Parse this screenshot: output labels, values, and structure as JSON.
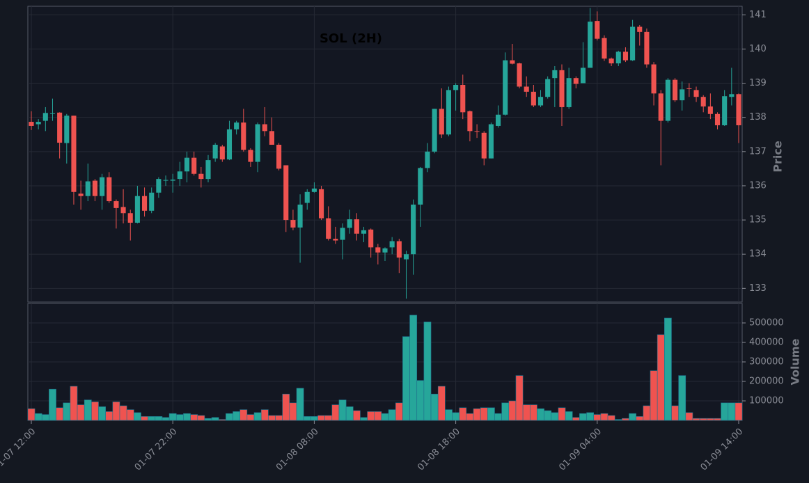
{
  "chart_data": {
    "type": "candlestick",
    "title": "SOL (2H)",
    "ylabel": "Price",
    "volume_label": "Volume",
    "up_color": "#26a69a",
    "down_color": "#ef5350",
    "grid": true,
    "categories": [
      "01-07 12:00",
      null,
      null,
      null,
      null,
      null,
      null,
      null,
      null,
      null,
      null,
      null,
      null,
      null,
      null,
      null,
      null,
      null,
      null,
      null,
      "01-07 22:00",
      null,
      null,
      null,
      null,
      null,
      null,
      null,
      null,
      null,
      null,
      null,
      null,
      null,
      null,
      null,
      null,
      null,
      null,
      null,
      "01-08 08:00",
      null,
      null,
      null,
      null,
      null,
      null,
      null,
      null,
      null,
      null,
      null,
      null,
      null,
      null,
      null,
      null,
      null,
      null,
      null,
      "01-08 18:00",
      null,
      null,
      null,
      null,
      null,
      null,
      null,
      null,
      null,
      null,
      null,
      null,
      null,
      null,
      null,
      null,
      null,
      null,
      null,
      "01-09 04:00",
      null,
      null,
      null,
      null,
      null,
      null,
      null,
      null,
      null,
      null,
      null,
      null,
      null,
      null,
      null,
      null,
      null,
      null,
      null,
      "01-09 14:00"
    ],
    "open": [
      137.87,
      137.8,
      137.9,
      138.1,
      138.14,
      137.25,
      138.05,
      135.77,
      135.7,
      136.15,
      135.7,
      136.25,
      135.55,
      135.38,
      135.2,
      134.92,
      135.7,
      135.27,
      135.8,
      136.15,
      136.15,
      136.2,
      136.42,
      136.82,
      136.35,
      136.2,
      136.8,
      137.15,
      136.77,
      137.65,
      137.85,
      137.05,
      136.7,
      137.8,
      137.6,
      137.2,
      136.6,
      135.0,
      134.78,
      135.5,
      135.82,
      135.9,
      135.05,
      134.45,
      134.42,
      134.77,
      135.02,
      134.6,
      134.72,
      134.2,
      134.05,
      134.2,
      134.38,
      133.85,
      134.0,
      135.45,
      136.52,
      137.0,
      138.25,
      137.5,
      138.8,
      138.95,
      138.18,
      137.6,
      137.55,
      136.8,
      137.75,
      138.08,
      139.67,
      139.58,
      138.9,
      138.75,
      138.35,
      138.6,
      139.15,
      139.38,
      138.3,
      139.15,
      139.0,
      139.45,
      140.82,
      140.32,
      139.72,
      139.58,
      139.92,
      139.67,
      140.65,
      140.5,
      139.55,
      138.7,
      137.9,
      139.1,
      138.5,
      138.85,
      138.8,
      138.6,
      138.32,
      138.1,
      137.77,
      138.6,
      138.68
    ],
    "high": [
      138.18,
      137.95,
      138.3,
      138.55,
      138.15,
      138.1,
      138.05,
      136.15,
      136.65,
      136.2,
      136.35,
      136.4,
      135.6,
      135.9,
      135.3,
      136.0,
      135.95,
      135.95,
      136.25,
      136.3,
      136.35,
      136.7,
      137.0,
      137.0,
      136.55,
      136.9,
      137.25,
      137.2,
      137.9,
      137.9,
      138.25,
      137.1,
      137.85,
      138.3,
      138.0,
      137.25,
      136.6,
      135.3,
      135.75,
      135.9,
      136.1,
      136.0,
      135.4,
      134.8,
      134.9,
      135.3,
      135.2,
      134.8,
      134.75,
      134.3,
      134.2,
      134.5,
      134.45,
      134.1,
      135.6,
      136.55,
      137.25,
      138.25,
      138.85,
      138.9,
      139.0,
      139.25,
      138.2,
      137.8,
      137.6,
      137.85,
      138.35,
      139.9,
      140.15,
      139.6,
      139.2,
      138.95,
      138.8,
      139.2,
      139.5,
      139.55,
      139.45,
      139.2,
      140.2,
      141.2,
      141.1,
      140.4,
      139.75,
      139.95,
      140.05,
      140.85,
      140.7,
      140.6,
      139.62,
      138.8,
      139.15,
      139.15,
      139.05,
      139.0,
      138.9,
      138.65,
      138.7,
      138.15,
      138.8,
      139.45,
      138.7
    ],
    "low": [
      137.63,
      137.65,
      137.6,
      137.9,
      136.8,
      136.65,
      135.45,
      135.3,
      135.55,
      135.55,
      135.3,
      135.5,
      134.75,
      134.9,
      134.4,
      134.9,
      135.1,
      135.2,
      135.65,
      136.0,
      135.8,
      136.0,
      136.1,
      136.3,
      135.95,
      136.1,
      136.7,
      136.7,
      136.75,
      137.5,
      137.0,
      136.55,
      136.4,
      137.45,
      137.2,
      136.45,
      134.65,
      134.7,
      133.75,
      135.3,
      135.8,
      135.0,
      134.4,
      134.3,
      133.85,
      134.6,
      134.4,
      134.35,
      133.9,
      133.7,
      133.8,
      134.0,
      133.45,
      132.7,
      133.4,
      134.8,
      136.4,
      136.95,
      137.4,
      137.45,
      138.2,
      137.95,
      137.3,
      137.4,
      136.6,
      136.8,
      137.7,
      138.05,
      139.55,
      138.85,
      138.6,
      138.3,
      138.3,
      138.55,
      138.3,
      137.75,
      138.25,
      138.85,
      139.0,
      139.45,
      140.25,
      139.65,
      139.5,
      139.5,
      139.62,
      139.65,
      140.1,
      139.45,
      138.35,
      136.6,
      137.85,
      138.45,
      138.2,
      138.6,
      138.45,
      138.15,
      137.95,
      137.65,
      137.75,
      138.35,
      137.25
    ],
    "close": [
      137.75,
      137.87,
      138.13,
      138.12,
      137.26,
      138.05,
      135.82,
      135.7,
      136.13,
      135.7,
      136.25,
      135.55,
      135.35,
      135.2,
      134.92,
      135.7,
      135.27,
      135.8,
      136.2,
      136.17,
      136.18,
      136.42,
      136.82,
      136.35,
      136.2,
      136.75,
      137.2,
      136.77,
      137.65,
      137.85,
      137.05,
      136.7,
      137.8,
      137.6,
      137.2,
      136.5,
      135.0,
      134.78,
      135.45,
      135.82,
      135.92,
      135.05,
      134.45,
      134.4,
      134.77,
      135.02,
      134.6,
      134.7,
      134.2,
      134.05,
      134.17,
      134.38,
      133.9,
      134.0,
      135.45,
      136.52,
      137.0,
      138.25,
      137.5,
      138.8,
      138.95,
      138.15,
      137.6,
      137.58,
      136.8,
      137.8,
      138.08,
      139.67,
      139.57,
      138.9,
      138.75,
      138.35,
      138.6,
      139.12,
      139.38,
      138.3,
      139.15,
      138.98,
      139.45,
      140.8,
      140.3,
      139.72,
      139.58,
      139.92,
      139.67,
      140.65,
      140.5,
      139.55,
      138.7,
      137.9,
      139.1,
      138.5,
      138.82,
      138.83,
      138.6,
      138.32,
      138.1,
      137.77,
      138.62,
      138.68,
      137.77
    ],
    "volume": [
      60000,
      35000,
      30000,
      160000,
      65000,
      90000,
      175000,
      80000,
      105000,
      95000,
      70000,
      45000,
      95000,
      75000,
      55000,
      40000,
      20000,
      20000,
      20000,
      15000,
      35000,
      30000,
      35000,
      30000,
      25000,
      10000,
      15000,
      5000,
      35000,
      45000,
      55000,
      30000,
      40000,
      55000,
      25000,
      25000,
      135000,
      90000,
      165000,
      20000,
      20000,
      25000,
      25000,
      80000,
      105000,
      70000,
      50000,
      15000,
      45000,
      45000,
      35000,
      55000,
      90000,
      430000,
      540000,
      205000,
      505000,
      135000,
      175000,
      55000,
      40000,
      65000,
      35000,
      60000,
      65000,
      65000,
      35000,
      90000,
      100000,
      230000,
      80000,
      80000,
      60000,
      50000,
      40000,
      65000,
      45000,
      15000,
      35000,
      40000,
      30000,
      35000,
      25000,
      5000,
      10000,
      35000,
      20000,
      75000,
      255000,
      440000,
      525000,
      75000,
      230000,
      40000,
      10000,
      10000,
      10000,
      10000,
      90000,
      90000,
      90000
    ],
    "ylim": [
      132.6,
      141.25
    ],
    "yticks": [
      133,
      134,
      135,
      136,
      137,
      138,
      139,
      140,
      141
    ],
    "volume_ylim": [
      0,
      600000
    ],
    "volume_yticks": [
      100000,
      200000,
      300000,
      400000,
      500000
    ]
  }
}
